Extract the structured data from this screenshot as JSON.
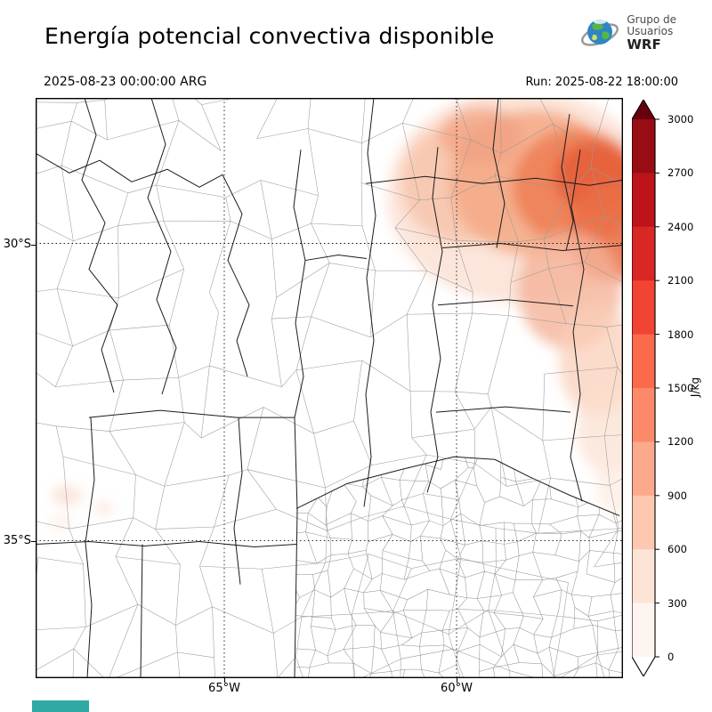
{
  "header": {
    "title": "Energía potencial convectiva disponible",
    "logo": {
      "line1": "Grupo de",
      "line2": "Usuarios",
      "line3": "WRF"
    }
  },
  "subheader": {
    "valid_time": "2025-08-23 00:00:00 ARG",
    "run": "Run: 2025-08-22 18:00:00"
  },
  "axes": {
    "lat": [
      "30°S",
      "35°S"
    ],
    "lon": [
      "65°W",
      "60°W"
    ]
  },
  "colorbar": {
    "unit": "J/kg",
    "tick_labels_top_to_bottom": [
      "3000",
      "2700",
      "2400",
      "2100",
      "1800",
      "1500",
      "1200",
      "900",
      "600",
      "300",
      "0"
    ],
    "segment_colors_low_to_high": [
      "#fff5f0",
      "#fee3d7",
      "#fdc7b0",
      "#fca98c",
      "#fc8a6a",
      "#fb6b4b",
      "#f14432",
      "#d92723",
      "#bc141a",
      "#980c13"
    ],
    "under_color": "#ffffff",
    "over_color": "#67000d"
  },
  "accents": {
    "bottom_strip_color": "#2fa9a3",
    "shading_theme": "Reds"
  }
}
